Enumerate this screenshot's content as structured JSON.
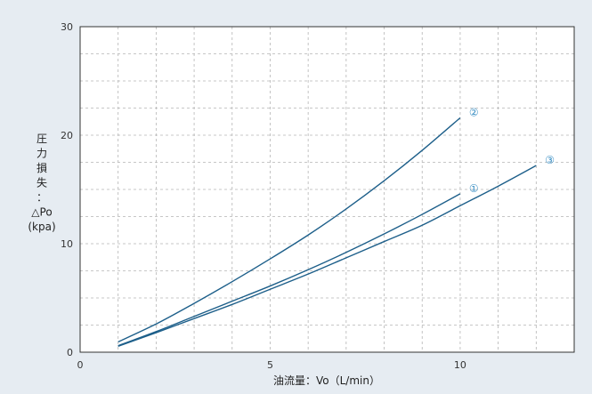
{
  "chart_data": {
    "type": "line",
    "title": "",
    "xlabel": "油流量：Vo（L/min）",
    "ylabel_lines": [
      "圧",
      "力",
      "損",
      "失",
      "：",
      "△Po",
      "(kpa)"
    ],
    "xlim": [
      0,
      13
    ],
    "ylim": [
      0,
      30
    ],
    "x_ticks": [
      0,
      5,
      10
    ],
    "y_ticks": [
      0,
      10,
      20,
      30
    ],
    "minor_x_step": 1,
    "minor_y_step": 2.5,
    "grid": true,
    "line_color": "#1d5f8a",
    "label_color": "#3a8fc4",
    "series": [
      {
        "name": "①",
        "points": [
          [
            1,
            0.6
          ],
          [
            2,
            1.9
          ],
          [
            3,
            3.3
          ],
          [
            4,
            4.7
          ],
          [
            5,
            6.1
          ],
          [
            6,
            7.6
          ],
          [
            7,
            9.2
          ],
          [
            8,
            10.9
          ],
          [
            9,
            12.7
          ],
          [
            10,
            14.6
          ]
        ]
      },
      {
        "name": "②",
        "points": [
          [
            1,
            0.95
          ],
          [
            2,
            2.6
          ],
          [
            3,
            4.5
          ],
          [
            4,
            6.5
          ],
          [
            5,
            8.6
          ],
          [
            6,
            10.8
          ],
          [
            7,
            13.2
          ],
          [
            8,
            15.8
          ],
          [
            9,
            18.6
          ],
          [
            10,
            21.6
          ]
        ]
      },
      {
        "name": "③",
        "points": [
          [
            1,
            0.55
          ],
          [
            2,
            1.8
          ],
          [
            3,
            3.1
          ],
          [
            4,
            4.4
          ],
          [
            5,
            5.8
          ],
          [
            6,
            7.2
          ],
          [
            7,
            8.7
          ],
          [
            8,
            10.2
          ],
          [
            9,
            11.7
          ],
          [
            10,
            13.5
          ],
          [
            11,
            15.3
          ],
          [
            12,
            17.2
          ]
        ]
      }
    ]
  }
}
